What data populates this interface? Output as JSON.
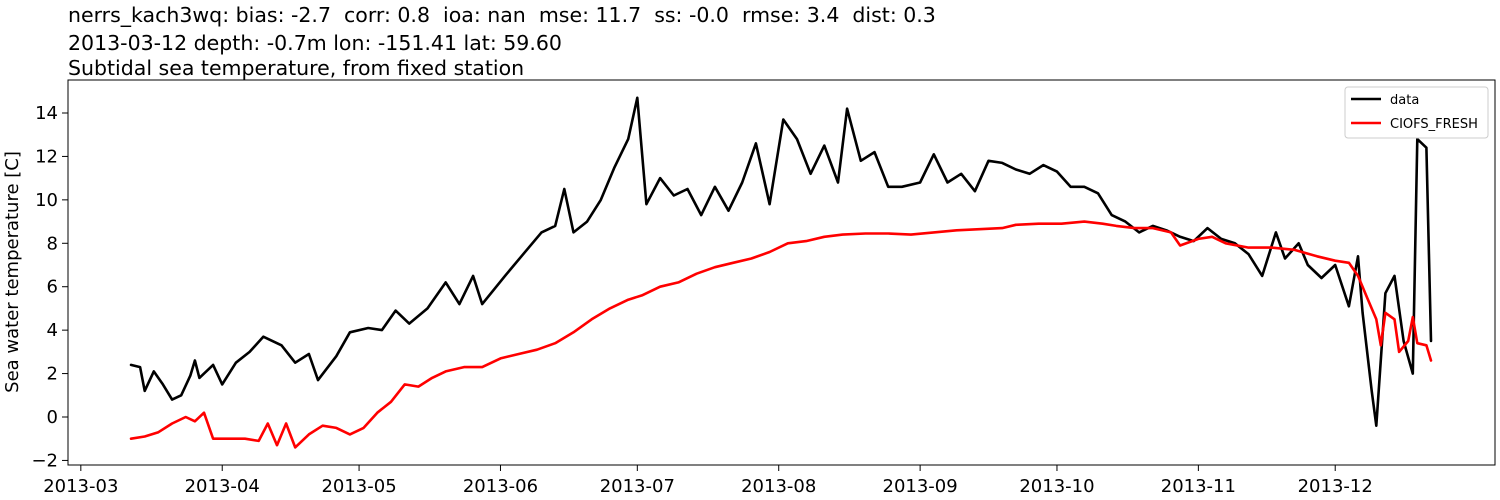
{
  "title_lines": [
    "nerrs_kach3wq: bias: -2.7  corr: 0.8  ioa: nan  mse: 11.7  ss: -0.0  rmse: 3.4  dist: 0.3",
    "2013-03-12 depth: -0.7m lon: -151.41 lat: 59.60",
    "Subtidal sea temperature, from fixed station"
  ],
  "chart_data": {
    "type": "line",
    "title": "nerrs_kach3wq: bias: -2.7  corr: 0.8  ioa: nan  mse: 11.7  ss: -0.0  rmse: 3.4  dist: 0.3",
    "ylabel": "Sea water temperature [C]",
    "xlabel": "",
    "xlim": [
      "2013-03-11",
      "2013-12-15"
    ],
    "ylim": [
      -2.3,
      15.4
    ],
    "x_ticks": [
      "2013-03-01",
      "2013-04-01",
      "2013-05-01",
      "2013-06-01",
      "2013-07-01",
      "2013-08-01",
      "2013-09-01",
      "2013-10-01",
      "2013-11-01",
      "2013-12-01"
    ],
    "x_tick_labels": [
      "2013-03",
      "2013-04",
      "2013-05",
      "2013-06",
      "2013-07",
      "2013-08",
      "2013-09",
      "2013-10",
      "2013-11",
      "2013-12"
    ],
    "y_ticks": [
      -2,
      0,
      2,
      4,
      6,
      8,
      10,
      12,
      14
    ],
    "y_tick_labels": [
      "−2",
      "0",
      "2",
      "4",
      "6",
      "8",
      "10",
      "12",
      "14"
    ],
    "grid": false,
    "legend_position": "top-right",
    "series": [
      {
        "name": "data",
        "color": "#000000",
        "points": [
          [
            "2013-03-12",
            2.4
          ],
          [
            "2013-03-14",
            2.3
          ],
          [
            "2013-03-15",
            1.2
          ],
          [
            "2013-03-17",
            2.1
          ],
          [
            "2013-03-19",
            1.5
          ],
          [
            "2013-03-21",
            0.8
          ],
          [
            "2013-03-23",
            1.0
          ],
          [
            "2013-03-25",
            1.9
          ],
          [
            "2013-03-26",
            2.6
          ],
          [
            "2013-03-27",
            1.8
          ],
          [
            "2013-03-30",
            2.4
          ],
          [
            "2013-04-01",
            1.5
          ],
          [
            "2013-04-04",
            2.5
          ],
          [
            "2013-04-07",
            3.0
          ],
          [
            "2013-04-10",
            3.7
          ],
          [
            "2013-04-14",
            3.3
          ],
          [
            "2013-04-17",
            2.5
          ],
          [
            "2013-04-20",
            2.9
          ],
          [
            "2013-04-22",
            1.7
          ],
          [
            "2013-04-26",
            2.8
          ],
          [
            "2013-04-29",
            3.9
          ],
          [
            "2013-05-03",
            4.1
          ],
          [
            "2013-05-06",
            4.0
          ],
          [
            "2013-05-09",
            4.9
          ],
          [
            "2013-05-12",
            4.3
          ],
          [
            "2013-05-16",
            5.0
          ],
          [
            "2013-05-20",
            6.2
          ],
          [
            "2013-05-23",
            5.2
          ],
          [
            "2013-05-26",
            6.5
          ],
          [
            "2013-05-28",
            5.2
          ],
          [
            "2013-06-02",
            6.5
          ],
          [
            "2013-06-06",
            7.5
          ],
          [
            "2013-06-10",
            8.5
          ],
          [
            "2013-06-13",
            8.8
          ],
          [
            "2013-06-15",
            10.5
          ],
          [
            "2013-06-17",
            8.5
          ],
          [
            "2013-06-20",
            9.0
          ],
          [
            "2013-06-23",
            10.0
          ],
          [
            "2013-06-26",
            11.5
          ],
          [
            "2013-06-29",
            12.8
          ],
          [
            "2013-07-01",
            14.7
          ],
          [
            "2013-07-03",
            9.8
          ],
          [
            "2013-07-06",
            11.0
          ],
          [
            "2013-07-09",
            10.2
          ],
          [
            "2013-07-12",
            10.5
          ],
          [
            "2013-07-15",
            9.3
          ],
          [
            "2013-07-18",
            10.6
          ],
          [
            "2013-07-21",
            9.5
          ],
          [
            "2013-07-24",
            10.8
          ],
          [
            "2013-07-27",
            12.6
          ],
          [
            "2013-07-30",
            9.8
          ],
          [
            "2013-08-02",
            13.7
          ],
          [
            "2013-08-05",
            12.8
          ],
          [
            "2013-08-08",
            11.2
          ],
          [
            "2013-08-11",
            12.5
          ],
          [
            "2013-08-14",
            10.8
          ],
          [
            "2013-08-16",
            14.2
          ],
          [
            "2013-08-19",
            11.8
          ],
          [
            "2013-08-22",
            12.2
          ],
          [
            "2013-08-25",
            10.6
          ],
          [
            "2013-08-28",
            10.6
          ],
          [
            "2013-09-01",
            10.8
          ],
          [
            "2013-09-04",
            12.1
          ],
          [
            "2013-09-07",
            10.8
          ],
          [
            "2013-09-10",
            11.2
          ],
          [
            "2013-09-13",
            10.4
          ],
          [
            "2013-09-16",
            11.8
          ],
          [
            "2013-09-19",
            11.7
          ],
          [
            "2013-09-22",
            11.4
          ],
          [
            "2013-09-25",
            11.2
          ],
          [
            "2013-09-28",
            11.6
          ],
          [
            "2013-10-01",
            11.3
          ],
          [
            "2013-10-04",
            10.6
          ],
          [
            "2013-10-07",
            10.6
          ],
          [
            "2013-10-10",
            10.3
          ],
          [
            "2013-10-13",
            9.3
          ],
          [
            "2013-10-16",
            9.0
          ],
          [
            "2013-10-19",
            8.5
          ],
          [
            "2013-10-22",
            8.8
          ],
          [
            "2013-10-25",
            8.6
          ],
          [
            "2013-10-28",
            8.3
          ],
          [
            "2013-10-31",
            8.1
          ],
          [
            "2013-11-03",
            8.7
          ],
          [
            "2013-11-06",
            8.2
          ],
          [
            "2013-11-09",
            8.0
          ],
          [
            "2013-11-12",
            7.5
          ],
          [
            "2013-11-15",
            6.5
          ],
          [
            "2013-11-18",
            8.5
          ],
          [
            "2013-11-20",
            7.3
          ],
          [
            "2013-11-23",
            8.0
          ],
          [
            "2013-11-25",
            7.0
          ],
          [
            "2013-11-28",
            6.4
          ],
          [
            "2013-12-01",
            7.0
          ],
          [
            "2013-12-04",
            5.1
          ],
          [
            "2013-12-06",
            7.4
          ],
          [
            "2013-12-07",
            4.8
          ],
          [
            "2013-12-09",
            1.2
          ],
          [
            "2013-12-10",
            -0.4
          ],
          [
            "2013-12-12",
            5.7
          ],
          [
            "2013-12-14",
            6.5
          ],
          [
            "2013-12-16",
            3.5
          ],
          [
            "2013-12-18",
            2.0
          ],
          [
            "2013-12-19",
            12.8
          ],
          [
            "2013-12-21",
            12.4
          ],
          [
            "2013-12-22",
            3.5
          ]
        ]
      },
      {
        "name": "CIOFS_FRESH",
        "color": "#ff0000",
        "points": [
          [
            "2013-03-12",
            -1.0
          ],
          [
            "2013-03-15",
            -0.9
          ],
          [
            "2013-03-18",
            -0.7
          ],
          [
            "2013-03-21",
            -0.3
          ],
          [
            "2013-03-24",
            0.0
          ],
          [
            "2013-03-26",
            -0.2
          ],
          [
            "2013-03-28",
            0.2
          ],
          [
            "2013-03-30",
            -1.0
          ],
          [
            "2013-04-02",
            -1.0
          ],
          [
            "2013-04-06",
            -1.0
          ],
          [
            "2013-04-09",
            -1.1
          ],
          [
            "2013-04-11",
            -0.3
          ],
          [
            "2013-04-13",
            -1.3
          ],
          [
            "2013-04-15",
            -0.3
          ],
          [
            "2013-04-17",
            -1.4
          ],
          [
            "2013-04-20",
            -0.8
          ],
          [
            "2013-04-23",
            -0.4
          ],
          [
            "2013-04-26",
            -0.5
          ],
          [
            "2013-04-29",
            -0.8
          ],
          [
            "2013-05-02",
            -0.5
          ],
          [
            "2013-05-05",
            0.2
          ],
          [
            "2013-05-08",
            0.7
          ],
          [
            "2013-05-11",
            1.5
          ],
          [
            "2013-05-14",
            1.4
          ],
          [
            "2013-05-17",
            1.8
          ],
          [
            "2013-05-20",
            2.1
          ],
          [
            "2013-05-24",
            2.3
          ],
          [
            "2013-05-28",
            2.3
          ],
          [
            "2013-06-01",
            2.7
          ],
          [
            "2013-06-05",
            2.9
          ],
          [
            "2013-06-09",
            3.1
          ],
          [
            "2013-06-13",
            3.4
          ],
          [
            "2013-06-17",
            3.9
          ],
          [
            "2013-06-21",
            4.5
          ],
          [
            "2013-06-25",
            5.0
          ],
          [
            "2013-06-29",
            5.4
          ],
          [
            "2013-07-02",
            5.6
          ],
          [
            "2013-07-06",
            6.0
          ],
          [
            "2013-07-10",
            6.2
          ],
          [
            "2013-07-14",
            6.6
          ],
          [
            "2013-07-18",
            6.9
          ],
          [
            "2013-07-22",
            7.1
          ],
          [
            "2013-07-26",
            7.3
          ],
          [
            "2013-07-30",
            7.6
          ],
          [
            "2013-08-03",
            8.0
          ],
          [
            "2013-08-07",
            8.1
          ],
          [
            "2013-08-11",
            8.3
          ],
          [
            "2013-08-15",
            8.4
          ],
          [
            "2013-08-20",
            8.45
          ],
          [
            "2013-08-25",
            8.45
          ],
          [
            "2013-08-30",
            8.4
          ],
          [
            "2013-09-04",
            8.5
          ],
          [
            "2013-09-09",
            8.6
          ],
          [
            "2013-09-14",
            8.65
          ],
          [
            "2013-09-19",
            8.7
          ],
          [
            "2013-09-22",
            8.85
          ],
          [
            "2013-09-27",
            8.9
          ],
          [
            "2013-10-02",
            8.9
          ],
          [
            "2013-10-07",
            9.0
          ],
          [
            "2013-10-11",
            8.9
          ],
          [
            "2013-10-14",
            8.8
          ],
          [
            "2013-10-18",
            8.7
          ],
          [
            "2013-10-22",
            8.7
          ],
          [
            "2013-10-26",
            8.5
          ],
          [
            "2013-10-28",
            7.9
          ],
          [
            "2013-11-01",
            8.2
          ],
          [
            "2013-11-04",
            8.3
          ],
          [
            "2013-11-07",
            8.0
          ],
          [
            "2013-11-12",
            7.8
          ],
          [
            "2013-11-17",
            7.8
          ],
          [
            "2013-11-22",
            7.7
          ],
          [
            "2013-11-27",
            7.4
          ],
          [
            "2013-12-01",
            7.2
          ],
          [
            "2013-12-04",
            7.1
          ],
          [
            "2013-12-06",
            6.5
          ],
          [
            "2013-12-08",
            5.5
          ],
          [
            "2013-12-10",
            4.5
          ],
          [
            "2013-12-11",
            3.3
          ],
          [
            "2013-12-12",
            4.8
          ],
          [
            "2013-12-14",
            4.5
          ],
          [
            "2013-12-15",
            3.0
          ],
          [
            "2013-12-17",
            3.5
          ],
          [
            "2013-12-18",
            4.6
          ],
          [
            "2013-12-19",
            3.4
          ],
          [
            "2013-12-21",
            3.3
          ],
          [
            "2013-12-22",
            2.6
          ]
        ]
      }
    ]
  }
}
